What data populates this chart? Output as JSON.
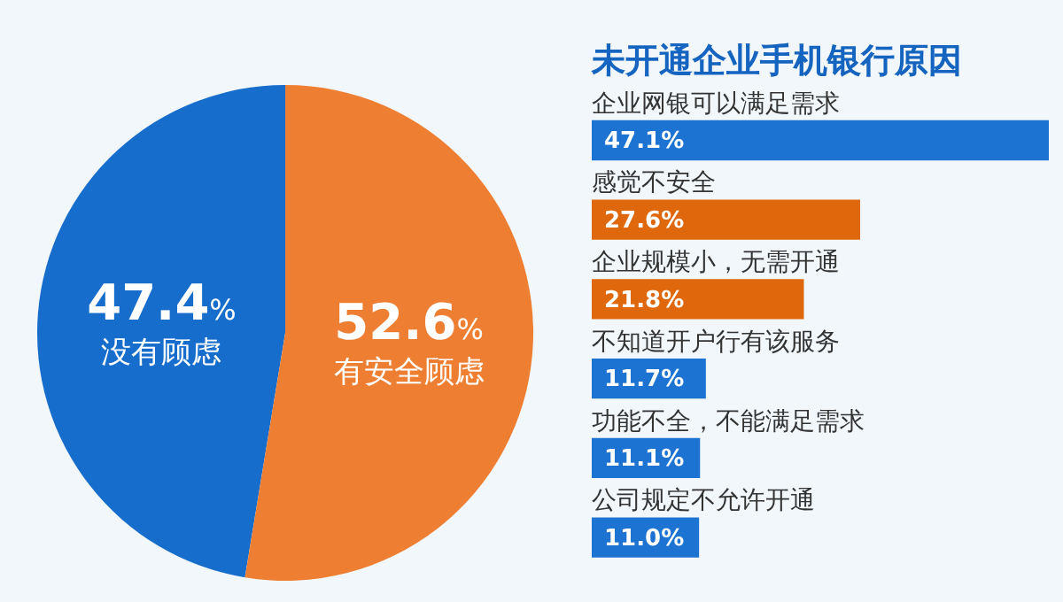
{
  "chart_data": [
    {
      "type": "pie",
      "categories": [
        "没有顾虑",
        "有安全顾虑"
      ],
      "values": [
        47.4,
        52.6
      ],
      "colors": [
        "#176dcc",
        "#ee7f32"
      ],
      "value_labels": [
        "47.4%",
        "52.6%"
      ]
    },
    {
      "type": "bar",
      "orientation": "horizontal",
      "title": "未开通企业手机银行原因",
      "categories": [
        "企业网银可以满足需求",
        "感觉不安全",
        "企业规模小，无需开通",
        "不知道开户行有该服务",
        "功能不全，不能满足需求",
        "公司规定不允许开通"
      ],
      "values": [
        47.1,
        27.6,
        21.8,
        11.7,
        11.1,
        11.0
      ],
      "colors": [
        "#1d73d2",
        "#e0680c",
        "#e0680c",
        "#1d73d2",
        "#1d73d2",
        "#1d73d2"
      ],
      "value_labels": [
        "47.1%",
        "27.6%",
        "21.8%",
        "11.7%",
        "11.1%",
        "11.0%"
      ]
    }
  ]
}
